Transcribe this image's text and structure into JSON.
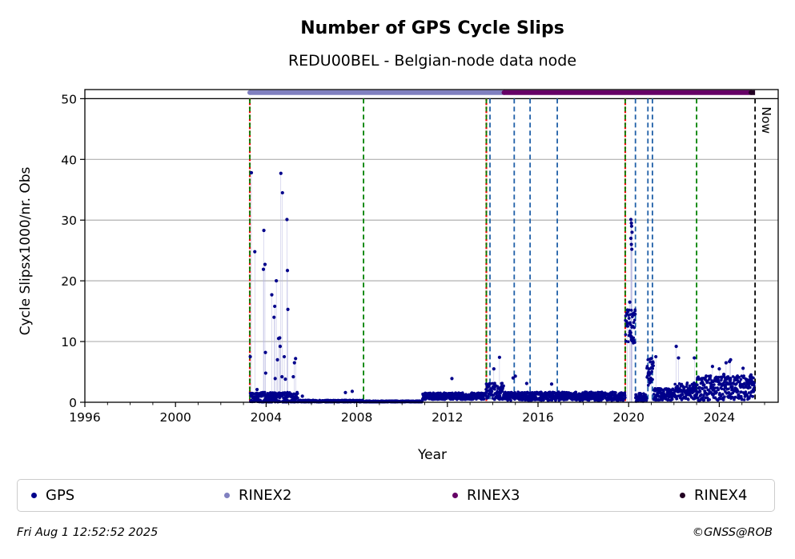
{
  "chart_data": {
    "type": "scatter",
    "title": "Number of GPS Cycle Slips",
    "subtitle": "REDU00BEL - Belgian-node data node",
    "xlabel": "Year",
    "ylabel": "Cycle Slipsx1000/nr. Obs",
    "xlim": [
      1996,
      2026.6
    ],
    "ylim": [
      0,
      51.5
    ],
    "x_ticks": [
      1996,
      2000,
      2004,
      2008,
      2012,
      2016,
      2020,
      2024
    ],
    "y_ticks": [
      0,
      10,
      20,
      30,
      40,
      50
    ],
    "grid": "horizontal",
    "now_label": "Now",
    "now_x": 2025.58,
    "colors": {
      "gps": "#00008b",
      "rinex2": "#8080c0",
      "rinex3": "#660066",
      "rinex4": "#220022",
      "red_marker": "#ff0000",
      "green_marker": "#008000",
      "blue_marker": "#1f5fa8",
      "now_marker": "#000000",
      "grid": "#b0b0b0"
    },
    "vertical_markers": [
      {
        "x": 2003.28,
        "kind": "red"
      },
      {
        "x": 2003.28,
        "kind": "green"
      },
      {
        "x": 2008.3,
        "kind": "green"
      },
      {
        "x": 2013.72,
        "kind": "red"
      },
      {
        "x": 2013.72,
        "kind": "green"
      },
      {
        "x": 2013.88,
        "kind": "blue"
      },
      {
        "x": 2014.95,
        "kind": "blue"
      },
      {
        "x": 2015.65,
        "kind": "blue"
      },
      {
        "x": 2016.85,
        "kind": "blue"
      },
      {
        "x": 2019.85,
        "kind": "red"
      },
      {
        "x": 2019.85,
        "kind": "green"
      },
      {
        "x": 2020.3,
        "kind": "blue"
      },
      {
        "x": 2020.85,
        "kind": "blue"
      },
      {
        "x": 2021.05,
        "kind": "blue"
      },
      {
        "x": 2023.0,
        "kind": "green"
      }
    ],
    "format_bars": [
      {
        "name": "RINEX2",
        "x_start": 2003.28,
        "x_end": 2014.5,
        "y": 51.0
      },
      {
        "name": "RINEX3",
        "x_start": 2014.5,
        "x_end": 2025.4,
        "y": 51.0
      },
      {
        "name": "RINEX4",
        "x_start": 2025.4,
        "x_end": 2025.58,
        "y": 51.0
      }
    ],
    "series": [
      {
        "name": "GPS",
        "baseline_segments": [
          {
            "x_start": 2003.3,
            "x_end": 2005.4,
            "level": 0.6,
            "spread": 1.5
          },
          {
            "x_start": 2005.4,
            "x_end": 2008.3,
            "level": 0.15,
            "spread": 0.3
          },
          {
            "x_start": 2008.3,
            "x_end": 2010.9,
            "level": 0.1,
            "spread": 0.2
          },
          {
            "x_start": 2010.9,
            "x_end": 2013.7,
            "level": 1.0,
            "spread": 0.8
          },
          {
            "x_start": 2013.7,
            "x_end": 2014.5,
            "level": 1.8,
            "spread": 2.0
          },
          {
            "x_start": 2014.5,
            "x_end": 2019.85,
            "level": 1.0,
            "spread": 1.0
          },
          {
            "x_start": 2019.85,
            "x_end": 2020.3,
            "level": 12.5,
            "spread": 4.0
          },
          {
            "x_start": 2020.3,
            "x_end": 2020.8,
            "level": 0.8,
            "spread": 1.0
          },
          {
            "x_start": 2020.8,
            "x_end": 2021.1,
            "level": 5.0,
            "spread": 3.5
          },
          {
            "x_start": 2021.1,
            "x_end": 2022.0,
            "level": 1.3,
            "spread": 1.4
          },
          {
            "x_start": 2022.0,
            "x_end": 2023.0,
            "level": 1.8,
            "spread": 2.0
          },
          {
            "x_start": 2023.0,
            "x_end": 2025.55,
            "level": 2.3,
            "spread": 3.0
          }
        ],
        "outliers": [
          {
            "x": 2003.35,
            "y": 37.8
          },
          {
            "x": 2003.3,
            "y": 7.5
          },
          {
            "x": 2003.5,
            "y": 24.8
          },
          {
            "x": 2003.9,
            "y": 28.3
          },
          {
            "x": 2003.88,
            "y": 21.9
          },
          {
            "x": 2003.95,
            "y": 22.7
          },
          {
            "x": 2003.97,
            "y": 8.2
          },
          {
            "x": 2003.98,
            "y": 4.8
          },
          {
            "x": 2004.25,
            "y": 17.7
          },
          {
            "x": 2004.35,
            "y": 14.0
          },
          {
            "x": 2004.38,
            "y": 15.8
          },
          {
            "x": 2004.45,
            "y": 20.0
          },
          {
            "x": 2004.55,
            "y": 10.5
          },
          {
            "x": 2004.6,
            "y": 10.6
          },
          {
            "x": 2004.62,
            "y": 9.2
          },
          {
            "x": 2004.65,
            "y": 37.7
          },
          {
            "x": 2004.72,
            "y": 34.5
          },
          {
            "x": 2004.8,
            "y": 7.5
          },
          {
            "x": 2004.92,
            "y": 30.1
          },
          {
            "x": 2004.94,
            "y": 21.7
          },
          {
            "x": 2004.96,
            "y": 15.3
          },
          {
            "x": 2004.4,
            "y": 3.9
          },
          {
            "x": 2004.5,
            "y": 7.0
          },
          {
            "x": 2004.7,
            "y": 4.2
          },
          {
            "x": 2004.85,
            "y": 3.8
          },
          {
            "x": 2005.2,
            "y": 4.2
          },
          {
            "x": 2005.25,
            "y": 6.5
          },
          {
            "x": 2005.3,
            "y": 7.2
          },
          {
            "x": 2003.6,
            "y": 2.1
          },
          {
            "x": 2005.6,
            "y": 1.0
          },
          {
            "x": 2007.5,
            "y": 1.6
          },
          {
            "x": 2007.8,
            "y": 1.8
          },
          {
            "x": 2012.2,
            "y": 3.9
          },
          {
            "x": 2014.3,
            "y": 7.4
          },
          {
            "x": 2014.05,
            "y": 5.5
          },
          {
            "x": 2014.9,
            "y": 4.0
          },
          {
            "x": 2015.0,
            "y": 4.3
          },
          {
            "x": 2015.5,
            "y": 3.1
          },
          {
            "x": 2016.6,
            "y": 3.0
          },
          {
            "x": 2019.95,
            "y": 15.2
          },
          {
            "x": 2020.05,
            "y": 16.5
          },
          {
            "x": 2020.1,
            "y": 30.1
          },
          {
            "x": 2020.12,
            "y": 29.5
          },
          {
            "x": 2020.15,
            "y": 28.0
          },
          {
            "x": 2020.1,
            "y": 27.0
          },
          {
            "x": 2020.12,
            "y": 26.0
          },
          {
            "x": 2020.14,
            "y": 25.2
          },
          {
            "x": 2020.13,
            "y": 29.0
          },
          {
            "x": 2021.0,
            "y": 7.2
          },
          {
            "x": 2021.2,
            "y": 7.5
          },
          {
            "x": 2022.1,
            "y": 9.2
          },
          {
            "x": 2022.2,
            "y": 7.3
          },
          {
            "x": 2022.9,
            "y": 7.3
          },
          {
            "x": 2023.7,
            "y": 5.9
          },
          {
            "x": 2024.0,
            "y": 5.5
          },
          {
            "x": 2024.3,
            "y": 6.5
          },
          {
            "x": 2024.2,
            "y": 4.6
          },
          {
            "x": 2024.5,
            "y": 7.0
          },
          {
            "x": 2024.45,
            "y": 6.7
          },
          {
            "x": 2024.7,
            "y": 4.0
          },
          {
            "x": 2025.05,
            "y": 5.6
          },
          {
            "x": 2025.4,
            "y": 4.5
          }
        ]
      }
    ]
  },
  "legend": {
    "items": [
      {
        "label": "GPS",
        "color": "#00008b"
      },
      {
        "label": "RINEX2",
        "color": "#8080c0"
      },
      {
        "label": "RINEX3",
        "color": "#660066"
      },
      {
        "label": "RINEX4",
        "color": "#220022"
      }
    ]
  },
  "footer": {
    "timestamp": "Fri Aug  1 12:52:52 2025",
    "credit": "©GNSS@ROB"
  }
}
